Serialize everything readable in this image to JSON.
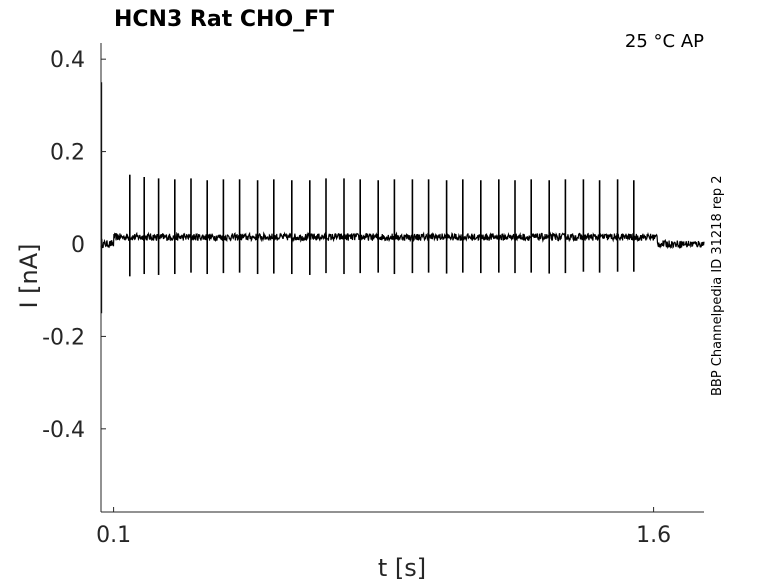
{
  "chart_data": {
    "type": "line",
    "title": "HCN3  Rat  CHO_FT",
    "condition_label": "25 °C  AP",
    "side_label": "BBP Channelpedia ID 31218 rep 2",
    "xlabel": "t [s]",
    "ylabel": "I [nA]",
    "xlim": [
      0.065,
      1.74
    ],
    "ylim": [
      -0.58,
      0.435
    ],
    "x_ticks": [
      {
        "value": 0.1,
        "label": "0.1"
      },
      {
        "value": 1.6,
        "label": "1.6"
      }
    ],
    "y_ticks": [
      {
        "value": 0.4,
        "label": "0.4"
      },
      {
        "value": 0.2,
        "label": "0.2"
      },
      {
        "value": 0,
        "label": "0"
      },
      {
        "value": -0.2,
        "label": "-0.2"
      },
      {
        "value": -0.4,
        "label": "-0.4"
      }
    ],
    "grid": false,
    "series": [
      {
        "color": "#000000",
        "stimulus_window": [
          0.1,
          1.6
        ],
        "baseline": 0.0,
        "plateau": 0.015,
        "noise_amplitude": 0.008,
        "initial_transient": {
          "t": 0.066,
          "max": 0.35,
          "min": -0.15
        },
        "spikes": [
          {
            "t": 0.145,
            "peak": 0.15,
            "trough": -0.07
          },
          {
            "t": 0.185,
            "peak": 0.145,
            "trough": -0.065
          },
          {
            "t": 0.225,
            "peak": 0.142,
            "trough": -0.067
          },
          {
            "t": 0.27,
            "peak": 0.14,
            "trough": -0.065
          },
          {
            "t": 0.315,
            "peak": 0.142,
            "trough": -0.062
          },
          {
            "t": 0.36,
            "peak": 0.138,
            "trough": -0.065
          },
          {
            "t": 0.405,
            "peak": 0.14,
            "trough": -0.063
          },
          {
            "t": 0.45,
            "peak": 0.14,
            "trough": -0.062
          },
          {
            "t": 0.5,
            "peak": 0.138,
            "trough": -0.065
          },
          {
            "t": 0.545,
            "peak": 0.14,
            "trough": -0.064
          },
          {
            "t": 0.595,
            "peak": 0.138,
            "trough": -0.065
          },
          {
            "t": 0.645,
            "peak": 0.138,
            "trough": -0.067
          },
          {
            "t": 0.69,
            "peak": 0.142,
            "trough": -0.063
          },
          {
            "t": 0.74,
            "peak": 0.142,
            "trough": -0.065
          },
          {
            "t": 0.785,
            "peak": 0.14,
            "trough": -0.063
          },
          {
            "t": 0.835,
            "peak": 0.138,
            "trough": -0.062
          },
          {
            "t": 0.88,
            "peak": 0.14,
            "trough": -0.065
          },
          {
            "t": 0.93,
            "peak": 0.14,
            "trough": -0.063
          },
          {
            "t": 0.975,
            "peak": 0.14,
            "trough": -0.062
          },
          {
            "t": 1.025,
            "peak": 0.138,
            "trough": -0.064
          },
          {
            "t": 1.07,
            "peak": 0.14,
            "trough": -0.062
          },
          {
            "t": 1.12,
            "peak": 0.138,
            "trough": -0.063
          },
          {
            "t": 1.17,
            "peak": 0.14,
            "trough": -0.062
          },
          {
            "t": 1.215,
            "peak": 0.138,
            "trough": -0.063
          },
          {
            "t": 1.26,
            "peak": 0.14,
            "trough": -0.062
          },
          {
            "t": 1.31,
            "peak": 0.138,
            "trough": -0.064
          },
          {
            "t": 1.355,
            "peak": 0.14,
            "trough": -0.063
          },
          {
            "t": 1.405,
            "peak": 0.14,
            "trough": -0.06
          },
          {
            "t": 1.45,
            "peak": 0.138,
            "trough": -0.062
          },
          {
            "t": 1.5,
            "peak": 0.14,
            "trough": -0.06
          },
          {
            "t": 1.545,
            "peak": 0.138,
            "trough": -0.06
          }
        ]
      }
    ]
  }
}
